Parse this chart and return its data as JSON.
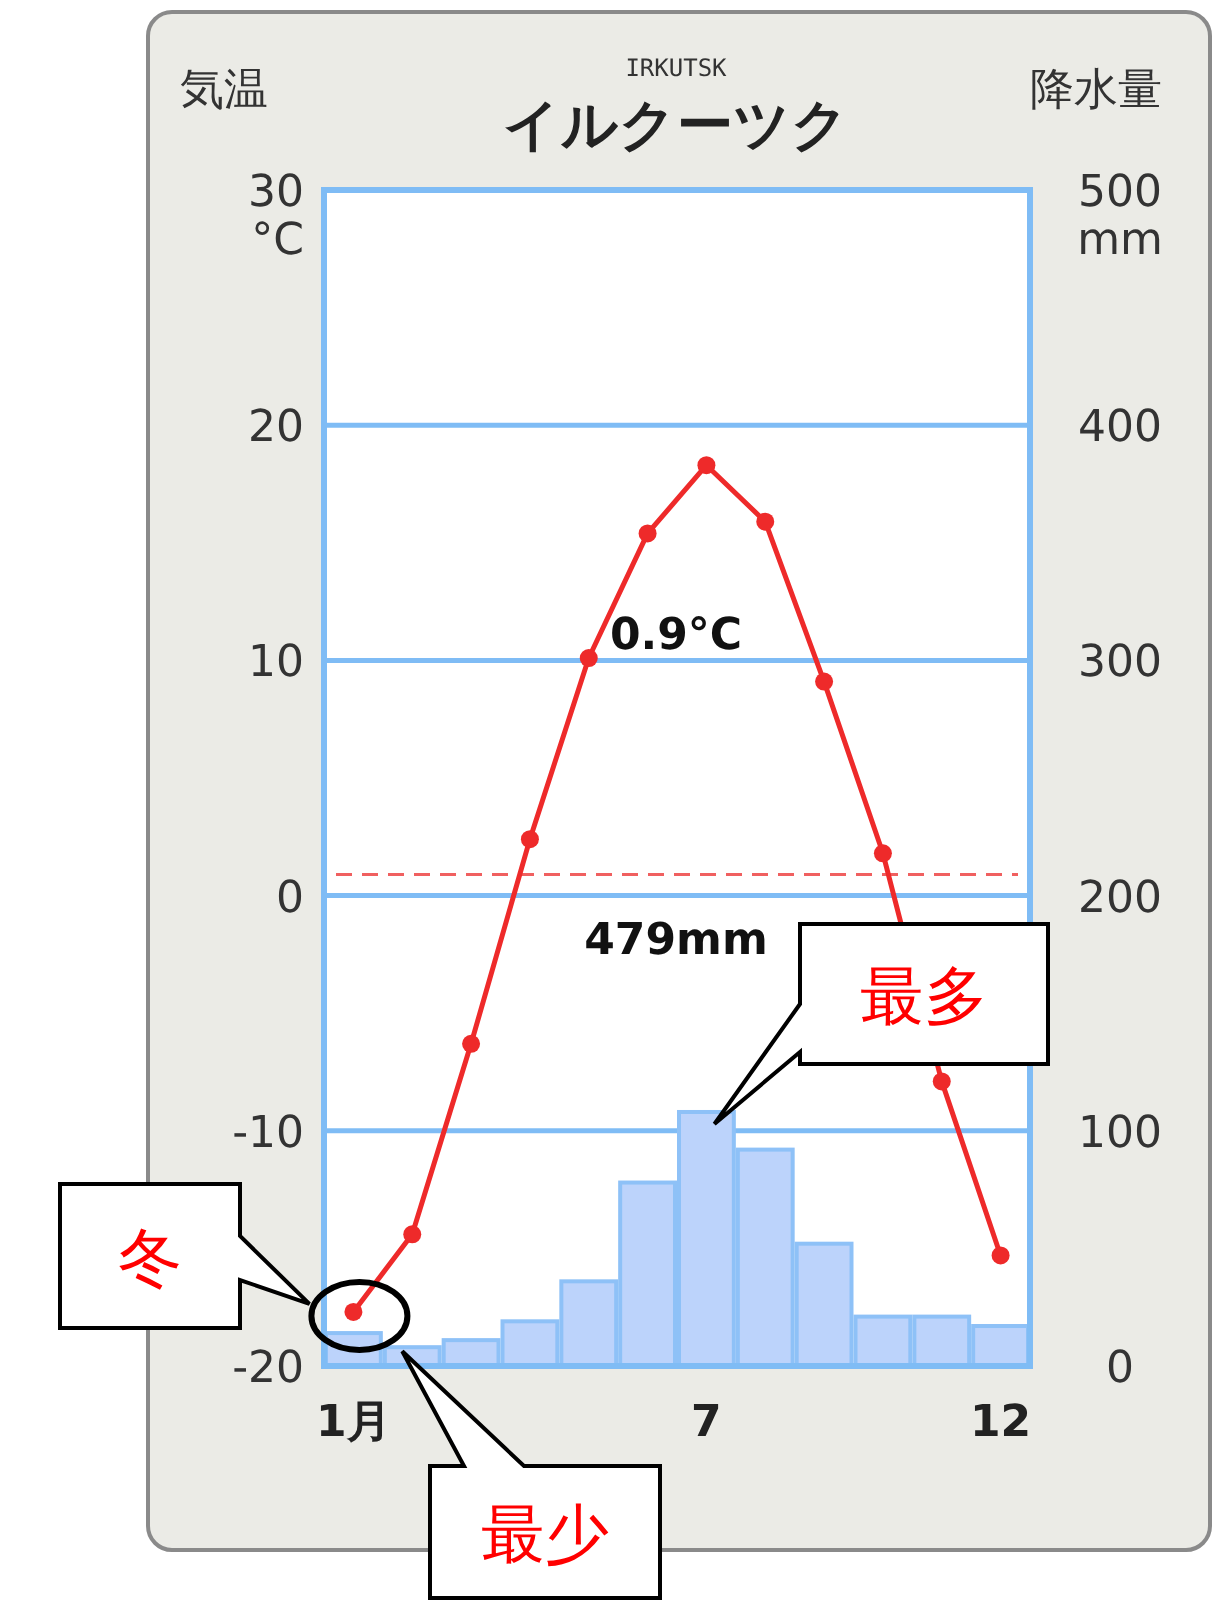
{
  "chart_data": {
    "type": "line",
    "title": "イルクーツク",
    "subtitle": "IRKUTSK",
    "ylabel": "気温",
    "y2label": "降水量",
    "categories": [
      "1月",
      null,
      null,
      null,
      null,
      null,
      "7",
      null,
      null,
      null,
      null,
      "12"
    ],
    "series": [
      {
        "type": "bar",
        "axis": "y2",
        "color": "#bcd3fb",
        "values": [
          14,
          8,
          11,
          19,
          36,
          78,
          108,
          92,
          52,
          21,
          21,
          17
        ]
      },
      {
        "color": "#ee2a2a",
        "values": [
          -17.7,
          -14.4,
          -6.3,
          2.4,
          10.1,
          15.4,
          18.3,
          15.9,
          9.1,
          1.8,
          -7.9,
          -15.3
        ]
      }
    ],
    "ylim": [
      -20,
      30
    ],
    "yticks": [
      -20,
      -10,
      0,
      10,
      20,
      {
        "value": 30,
        "label": "30 °C"
      }
    ],
    "y2lim": [
      0,
      500
    ],
    "y2ticks": [
      0,
      100,
      200,
      300,
      400,
      {
        "value": 500,
        "label": "500 mm"
      }
    ],
    "ref_lines": [
      {
        "axis": "y",
        "value": 0.9,
        "color": "#f06060",
        "line_style": "dashed"
      }
    ],
    "annotations": [
      "0.9°C",
      "479mm",
      "冬",
      "最少",
      "最多"
    ],
    "grid": "y",
    "marker": "circle",
    "line_style": "solid"
  }
}
